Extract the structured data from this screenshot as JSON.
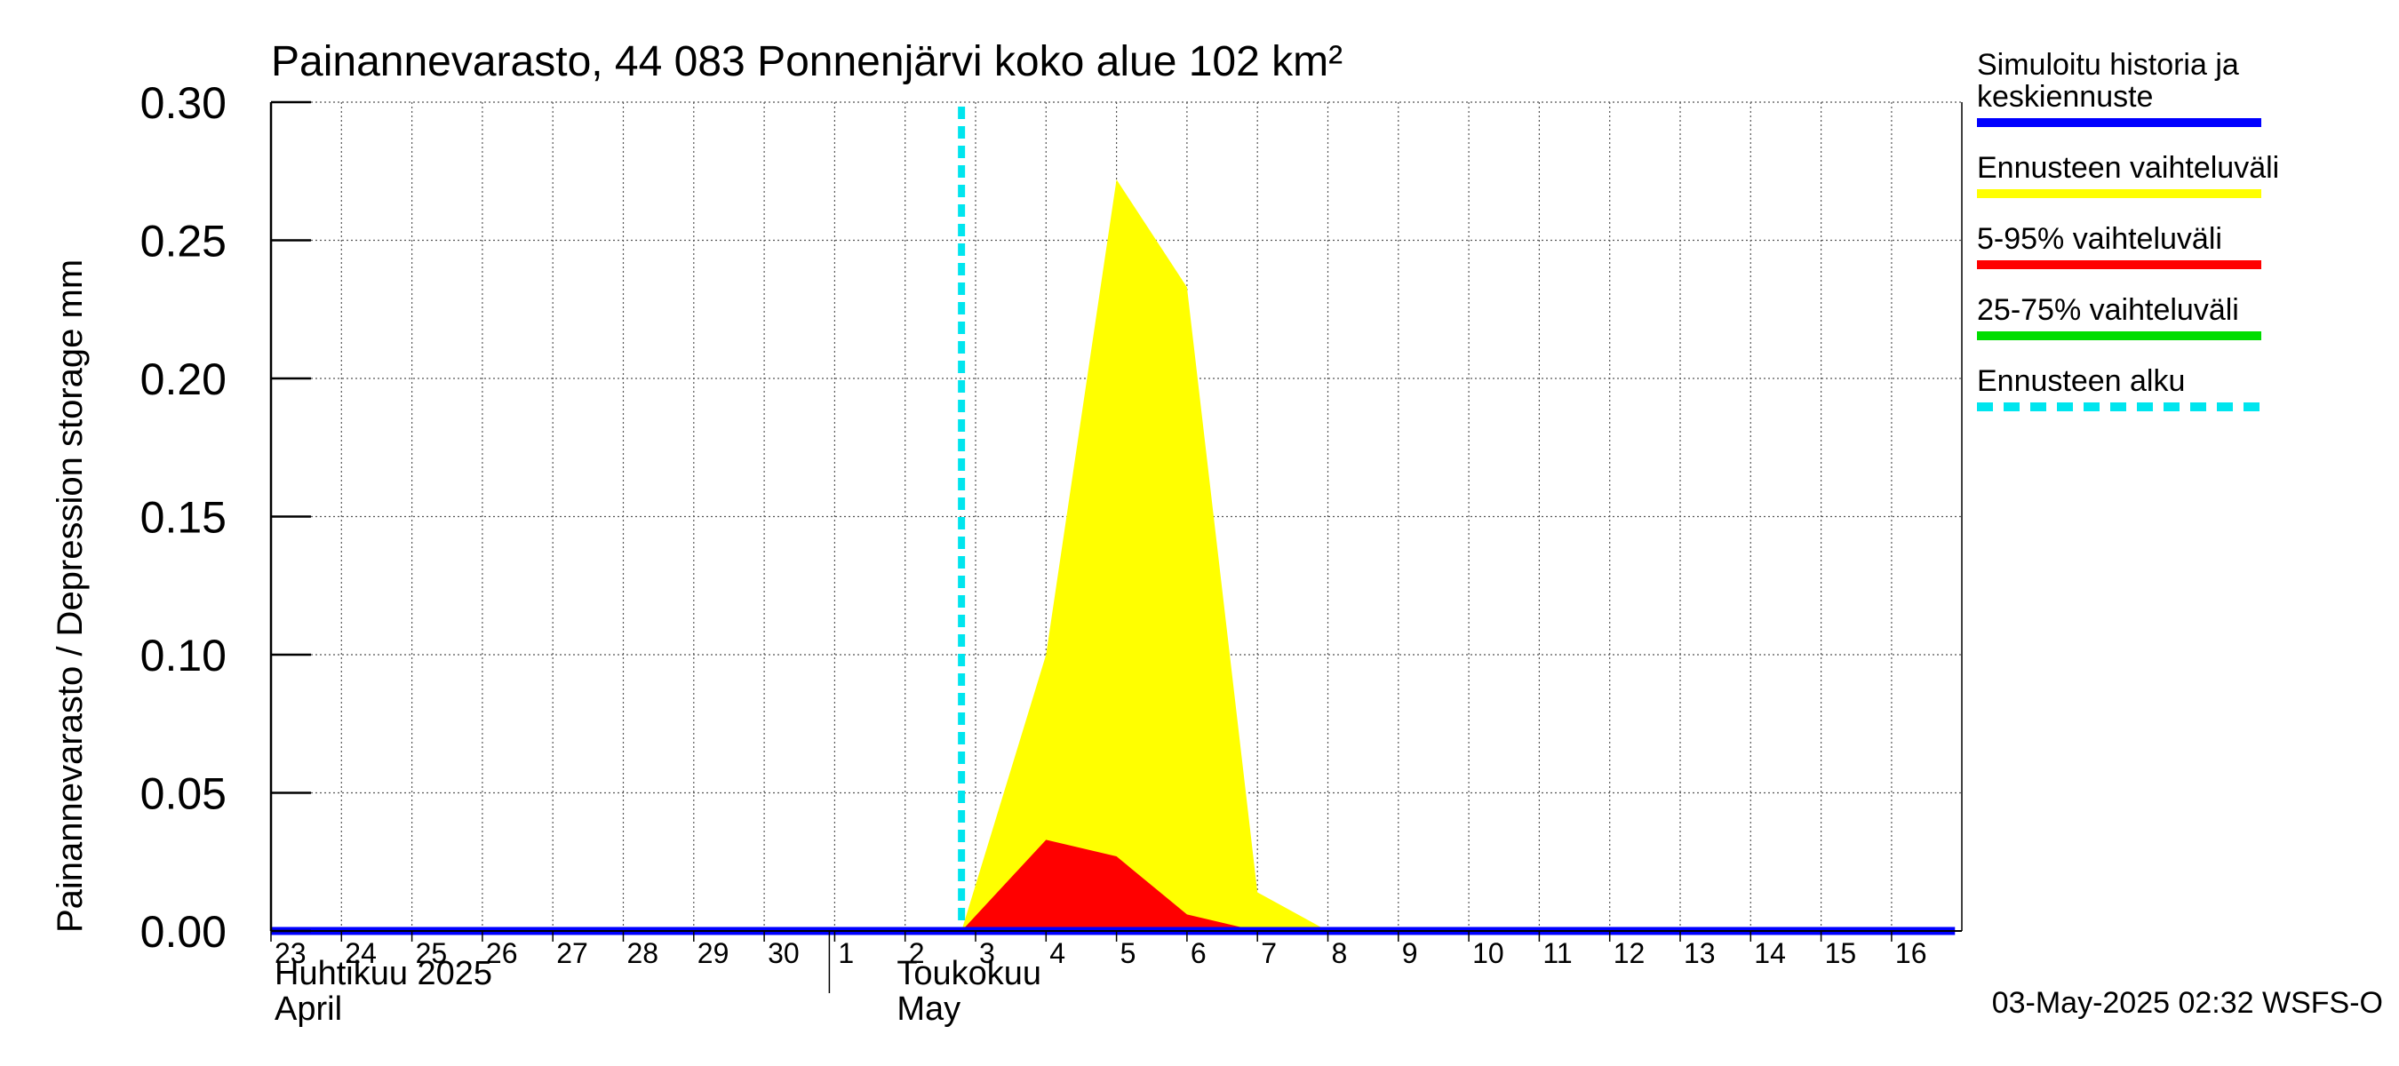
{
  "chart_data": {
    "type": "area",
    "title": "Painannevarasto, 44 083 Ponnenjärvi koko alue 102 km²",
    "ylabel": "Painannevarasto / Depression storage    mm",
    "ylim": [
      0,
      0.3
    ],
    "yticks": [
      "0.00",
      "0.05",
      "0.10",
      "0.15",
      "0.20",
      "0.25",
      "0.30"
    ],
    "x_day_labels": [
      "23",
      "24",
      "25",
      "26",
      "27",
      "28",
      "29",
      "30",
      "1",
      "2",
      "3",
      "4",
      "5",
      "6",
      "7",
      "8",
      "9",
      "10",
      "11",
      "12",
      "13",
      "14",
      "15",
      "16"
    ],
    "month_labels": [
      {
        "fi": "Huhtikuu  2025",
        "en": "April",
        "start_day_index": 0
      },
      {
        "fi": "Toukokuu",
        "en": "May",
        "start_day_index": 8
      }
    ],
    "grid": true,
    "forecast_start_day_index": 9.8,
    "series": [
      {
        "name": "Ennusteen vaihteluväli",
        "color": "#ffff00",
        "points": [
          [
            9.8,
            0
          ],
          [
            11,
            0.1
          ],
          [
            12,
            0.272
          ],
          [
            13,
            0.233
          ],
          [
            14,
            0.014
          ],
          [
            15,
            0
          ]
        ]
      },
      {
        "name": "5-95% vaihteluväli",
        "color": "#ff0000",
        "points": [
          [
            9.8,
            0
          ],
          [
            11,
            0.033
          ],
          [
            12,
            0.027
          ],
          [
            13,
            0.006
          ],
          [
            14,
            0
          ],
          [
            15,
            0
          ]
        ]
      },
      {
        "name": "Simuloitu historia ja keskiennuste",
        "color": "#0000ff",
        "points": [
          [
            0,
            0
          ],
          [
            23.9,
            0
          ]
        ]
      }
    ]
  },
  "legend": [
    {
      "label": "Simuloitu historia ja\nkeskiennuste",
      "color": "#0000ff",
      "style": "solid"
    },
    {
      "label": "Ennusteen vaihteluväli",
      "color": "#ffff00",
      "style": "solid"
    },
    {
      "label": "5-95% vaihteluväli",
      "color": "#ff0000",
      "style": "solid"
    },
    {
      "label": "25-75% vaihteluväli",
      "color": "#00dd00",
      "style": "solid"
    },
    {
      "label": "Ennusteen alku",
      "color": "#00e5ee",
      "style": "dashed"
    }
  ],
  "footer": {
    "timestamp": "03-May-2025 02:32 WSFS-O"
  }
}
